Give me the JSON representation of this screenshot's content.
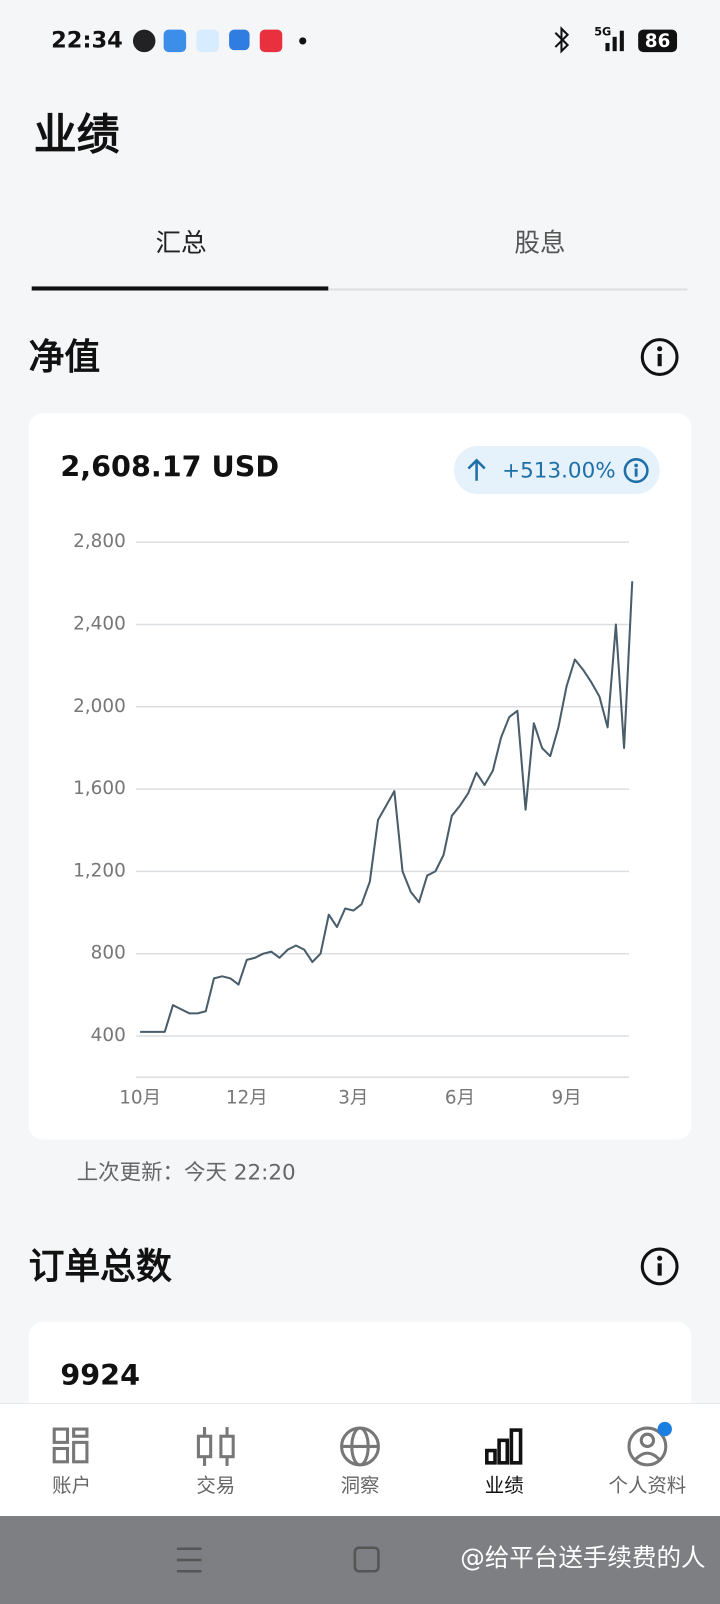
{
  "status_bar": {
    "time": "22:34",
    "network": "5G",
    "battery": "86"
  },
  "header": {
    "title": "业绩"
  },
  "tabs": [
    "汇总",
    "股息"
  ],
  "net_value": {
    "title": "净值",
    "amount": "2,608.17 USD",
    "change": "+513.00%",
    "last_updated": "上次更新：今天 22:20"
  },
  "chart_data": {
    "type": "line",
    "color": "#4a5d6b",
    "grid": true,
    "ylim": [
      200,
      2800
    ],
    "yticks": [
      400,
      800,
      {
        "value": 1200,
        "label": "1,200"
      },
      {
        "value": 1600,
        "label": "1,600"
      },
      {
        "value": 2000,
        "label": "2,000"
      },
      {
        "value": 2400,
        "label": "2,400"
      },
      {
        "value": 2800,
        "label": "2,800"
      }
    ],
    "categories": [
      "10月",
      null,
      null,
      null,
      null,
      null,
      null,
      null,
      null,
      null,
      null,
      null,
      null,
      "12月",
      null,
      null,
      null,
      null,
      null,
      null,
      null,
      null,
      null,
      null,
      null,
      null,
      "3月",
      null,
      null,
      null,
      null,
      null,
      null,
      null,
      null,
      null,
      null,
      null,
      null,
      "6月",
      null,
      null,
      null,
      null,
      null,
      null,
      null,
      null,
      null,
      null,
      null,
      null,
      "9月",
      null,
      null,
      null,
      null,
      null,
      null,
      null,
      null
    ],
    "values": [
      420,
      420,
      420,
      420,
      550,
      530,
      510,
      510,
      520,
      680,
      690,
      680,
      650,
      770,
      780,
      800,
      810,
      780,
      820,
      840,
      820,
      760,
      800,
      990,
      930,
      1020,
      1010,
      1040,
      1150,
      1450,
      1520,
      1590,
      1200,
      1100,
      1050,
      1180,
      1200,
      1280,
      1470,
      1520,
      1580,
      1680,
      1620,
      1690,
      1850,
      1950,
      1980,
      1500,
      1920,
      1800,
      1760,
      1900,
      2100,
      2230,
      2180,
      2120,
      2050,
      1900,
      2400,
      1800,
      2610
    ]
  },
  "orders": {
    "title": "订单总数",
    "count": "9924"
  },
  "nav": [
    "账户",
    "交易",
    "洞察",
    "业绩",
    "个人资料"
  ],
  "watermark": "@给平台送手续费的人"
}
